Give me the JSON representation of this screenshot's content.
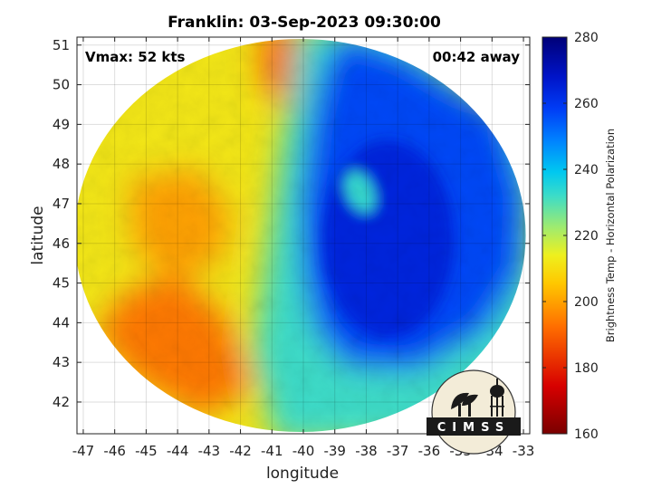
{
  "chart_data": {
    "type": "heatmap",
    "title": "Franklin: 03-Sep-2023 09:30:00",
    "xlabel": "longitude",
    "ylabel": "latitude",
    "xlim": [
      -47.2,
      -32.8
    ],
    "ylim": [
      41.2,
      51.2
    ],
    "xticks": [
      -47,
      -46,
      -45,
      -44,
      -43,
      -42,
      -41,
      -40,
      -39,
      -38,
      -37,
      -36,
      -35,
      -34,
      -33
    ],
    "yticks": [
      42,
      43,
      44,
      45,
      46,
      47,
      48,
      49,
      50,
      51
    ],
    "grid": true,
    "annotations": {
      "vmax": "Vmax: 52 kts",
      "time_away": "00:42 away"
    },
    "colorbar": {
      "label": "Brightness Temp - Horizontal Polarization",
      "min": 160,
      "max": 280,
      "ticks": [
        160,
        180,
        200,
        220,
        240,
        260,
        280
      ]
    },
    "swath_center": [
      -40.1,
      46.2
    ],
    "eye_center": [
      -38.2,
      47.3
    ],
    "deep_core_center": [
      -37.3,
      46.1
    ],
    "fields": {
      "warm_ambient": 212,
      "outer_band": 232,
      "cloud_shield": 257,
      "deep_core": 264,
      "eye": 233,
      "warm_north": 190,
      "warm_southwest": 192,
      "orange_west": 198
    }
  },
  "logo": {
    "text": "CIMSS",
    "colors": {
      "disk": "#f3ecd8",
      "band": "#1a1a1a",
      "text": "#ffffff"
    }
  }
}
